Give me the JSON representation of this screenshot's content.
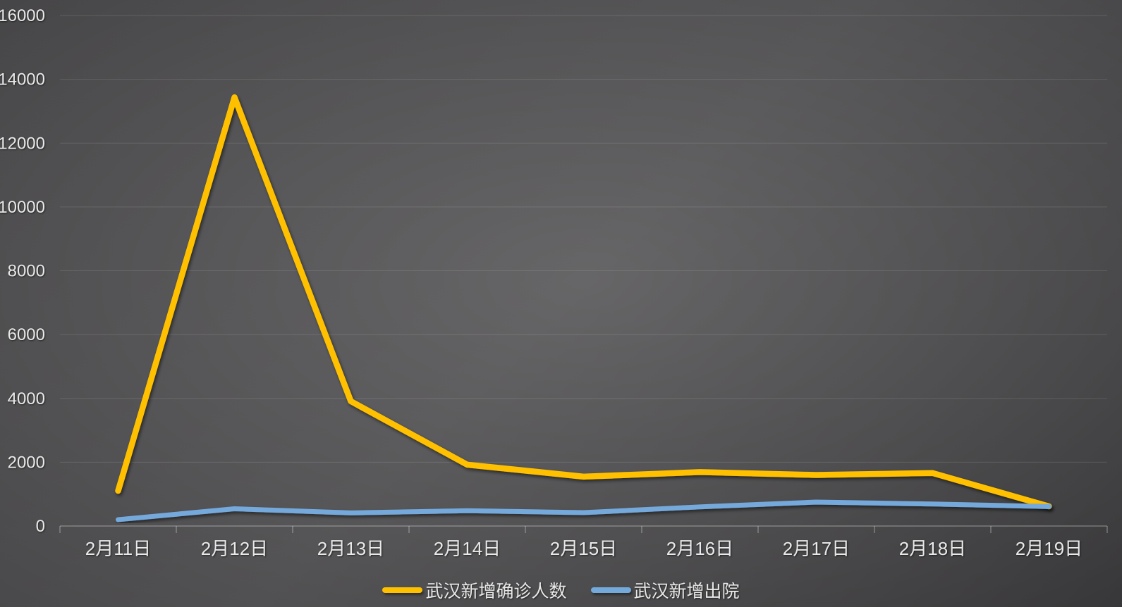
{
  "chart_data": {
    "type": "line",
    "title": "",
    "xlabel": "",
    "ylabel": "",
    "categories": [
      "2月11日",
      "2月12日",
      "2月13日",
      "2月14日",
      "2月15日",
      "2月16日",
      "2月17日",
      "2月18日",
      "2月19日"
    ],
    "series": [
      {
        "name": "武汉新增确诊人数",
        "color": "#FFC000",
        "values": [
          1104,
          13436,
          3910,
          1923,
          1548,
          1690,
          1600,
          1660,
          615
        ]
      },
      {
        "name": "武汉新增出院",
        "color": "#74A9DC",
        "values": [
          200,
          540,
          410,
          480,
          420,
          600,
          750,
          690,
          610
        ]
      }
    ],
    "ylim": [
      0,
      16000
    ],
    "yticks": [
      0,
      2000,
      4000,
      6000,
      8000,
      10000,
      12000,
      14000,
      16000
    ],
    "grid": true,
    "legend_position": "bottom-center"
  },
  "colors": {
    "series_confirmed": "#FFC000",
    "series_discharged": "#74A9DC",
    "axis_text": "#E9E9E9",
    "gridline": "rgba(255,255,255,0.12)",
    "axis_line": "rgba(255,255,255,0.30)"
  }
}
